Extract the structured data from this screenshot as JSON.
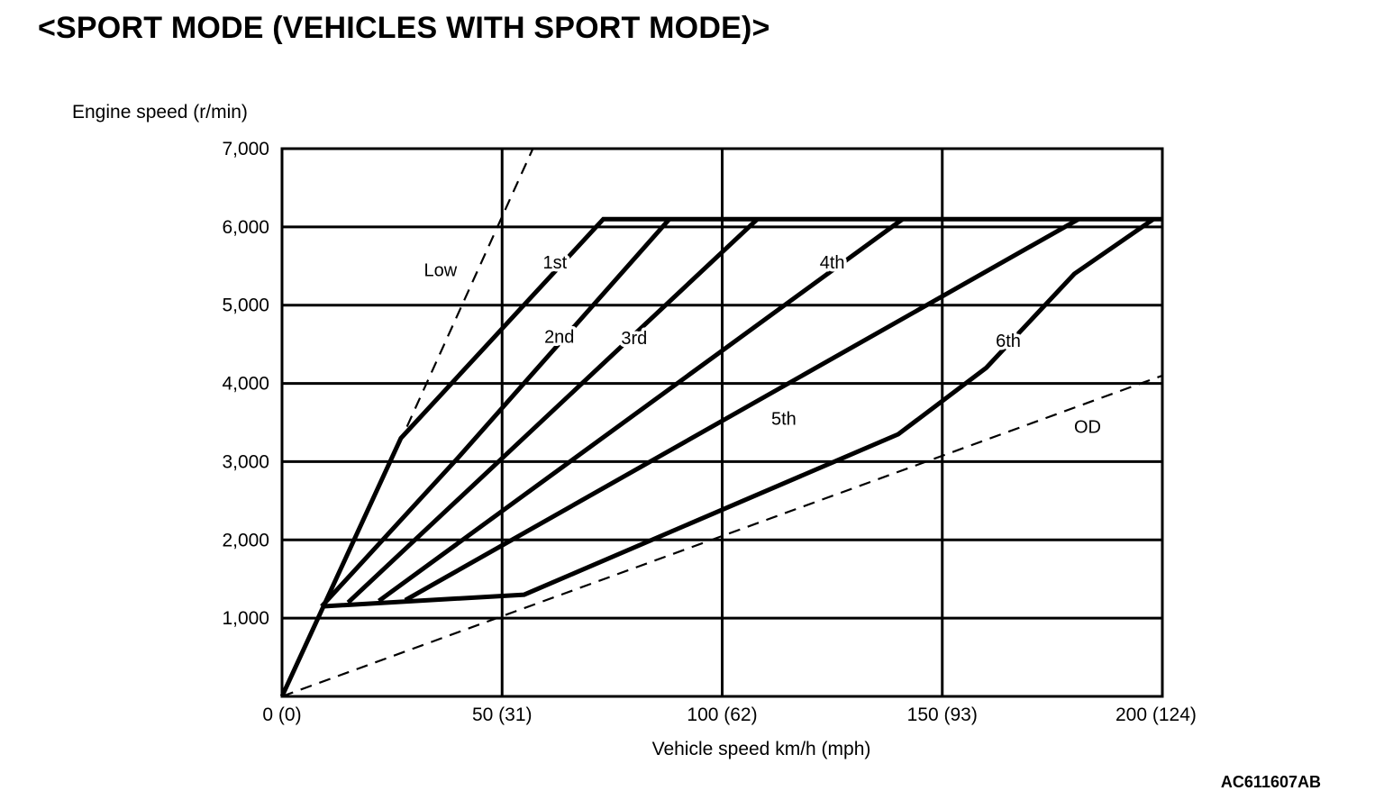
{
  "page": {
    "title": "<SPORT MODE (VEHICLES WITH SPORT MODE)>",
    "figure_code": "AC611607AB"
  },
  "chart_data": {
    "type": "line",
    "title": "<SPORT MODE (VEHICLES WITH SPORT MODE)>",
    "xlabel": "Vehicle speed  km/h (mph)",
    "ylabel": "Engine speed (r/min)",
    "xlim": [
      0,
      200
    ],
    "ylim": [
      0,
      7000
    ],
    "grid": true,
    "legend": "none",
    "x_ticks": [
      {
        "value": 0,
        "label": "0 (0)"
      },
      {
        "value": 50,
        "label": "50 (31)"
      },
      {
        "value": 100,
        "label": "100 (62)"
      },
      {
        "value": 150,
        "label": "150 (93)"
      },
      {
        "value": 200,
        "label": "200 (124)"
      }
    ],
    "y_ticks": [
      {
        "value": 1000,
        "label": "1,000"
      },
      {
        "value": 2000,
        "label": "2,000"
      },
      {
        "value": 3000,
        "label": "3,000"
      },
      {
        "value": 4000,
        "label": "4,000"
      },
      {
        "value": 5000,
        "label": "5,000"
      },
      {
        "value": 6000,
        "label": "6,000"
      },
      {
        "value": 7000,
        "label": "7,000"
      }
    ],
    "series": [
      {
        "name": "Low",
        "style": "dashed",
        "points": [
          [
            0,
            0
          ],
          [
            28,
            3400
          ],
          [
            57,
            7000
          ]
        ],
        "label_at": [
          36,
          5450
        ]
      },
      {
        "name": "1st",
        "style": "solid",
        "points": [
          [
            0,
            0
          ],
          [
            27,
            3300
          ],
          [
            73,
            6100
          ],
          [
            200,
            6100
          ]
        ],
        "label_at": [
          62,
          5550
        ]
      },
      {
        "name": "2nd",
        "style": "solid",
        "points": [
          [
            9,
            1150
          ],
          [
            40,
            3050
          ],
          [
            88,
            6100
          ]
        ],
        "label_at": [
          63,
          4600
        ]
      },
      {
        "name": "3rd",
        "style": "solid",
        "points": [
          [
            15,
            1200
          ],
          [
            108,
            6100
          ]
        ],
        "label_at": [
          80,
          4580
        ]
      },
      {
        "name": "4th",
        "style": "solid",
        "points": [
          [
            22,
            1220
          ],
          [
            141,
            6100
          ]
        ],
        "label_at": [
          125,
          5550
        ]
      },
      {
        "name": "5th",
        "style": "solid",
        "points": [
          [
            28,
            1230
          ],
          [
            181,
            6100
          ]
        ],
        "label_at": [
          114,
          3550
        ]
      },
      {
        "name": "6th",
        "style": "solid",
        "points": [
          [
            9,
            1150
          ],
          [
            55,
            1300
          ],
          [
            140,
            3350
          ],
          [
            160,
            4200
          ],
          [
            180,
            5400
          ],
          [
            198,
            6100
          ]
        ],
        "label_at": [
          165,
          4550
        ]
      },
      {
        "name": "OD",
        "style": "dashed",
        "points": [
          [
            0,
            0
          ],
          [
            200,
            4100
          ]
        ],
        "label_at": [
          183,
          3450
        ]
      }
    ]
  }
}
